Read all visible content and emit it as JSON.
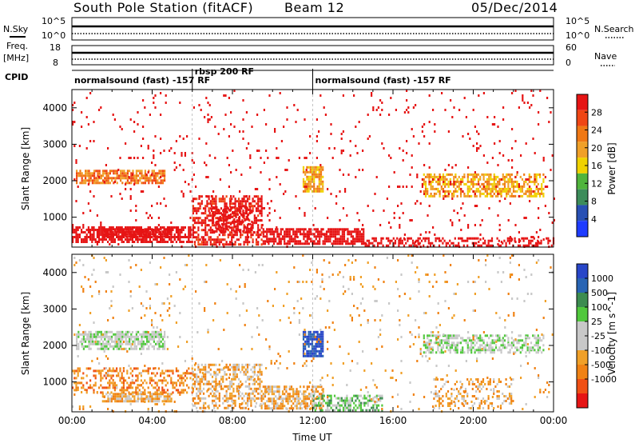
{
  "header": {
    "station": "South Pole Station (fitACF)",
    "beam": "Beam 12",
    "date": "05/Dec/2014"
  },
  "top_panels": {
    "nsky_label": "N.Sky",
    "nsky_ticks": [
      "10^5",
      "10^0"
    ],
    "nsearch_label": "N.Search",
    "nsearch_ticks": [
      "10^5",
      "10^0"
    ],
    "freq_label": "Freq.",
    "freq_unit": "[MHz]",
    "freq_ticks": [
      "18",
      "8"
    ],
    "nave_label": "Nave",
    "nave_ticks": [
      "60",
      "0"
    ],
    "cpid_label": "CPID",
    "cpid_segments": [
      {
        "label": "normalsound (fast) -157 RF",
        "start_hour": 0,
        "end_hour": 6
      },
      {
        "label": "rbsp 200 RF",
        "start_hour": 6,
        "end_hour": 12
      },
      {
        "label": "normalsound (fast) -157 RF",
        "start_hour": 12,
        "end_hour": 24
      }
    ]
  },
  "colors": {
    "power_scale": [
      "#1e3cff",
      "#2850b4",
      "#3c8c5a",
      "#50b43c",
      "#f0d200",
      "#f0a028",
      "#f07814",
      "#f04614",
      "#e61414"
    ],
    "velocity_scale": [
      "#2846c8",
      "#2864b4",
      "#3c8c50",
      "#50c83c",
      "#c8c8c8",
      "#c8c8c8",
      "#f0a028",
      "#f08214",
      "#f05014",
      "#e61414"
    ]
  },
  "chart_data": [
    {
      "type": "heatmap",
      "name": "power",
      "xlabel": "",
      "ylabel": "Slant Range [km]",
      "xlim": [
        0,
        24
      ],
      "ylim": [
        180,
        4500
      ],
      "y_ticks": [
        1000,
        2000,
        3000,
        4000
      ],
      "colorbar": {
        "label": "Power [dB]",
        "range": [
          0,
          32
        ],
        "ticks": [
          4,
          8,
          12,
          16,
          20,
          24,
          28
        ]
      },
      "regions": [
        {
          "t0": 0.2,
          "t1": 4.6,
          "r0": 1950,
          "r1": 2300,
          "level": 6,
          "density": 0.75
        },
        {
          "t0": 0.0,
          "t1": 6.0,
          "r0": 300,
          "r1": 750,
          "level": 20,
          "density": 0.7
        },
        {
          "t0": 1.5,
          "t1": 5.0,
          "r0": 500,
          "r1": 700,
          "level": 24,
          "density": 0.8
        },
        {
          "t0": 6.0,
          "t1": 9.5,
          "r0": 250,
          "r1": 1600,
          "level": 8,
          "density": 0.55
        },
        {
          "t0": 7.0,
          "t1": 9.0,
          "r0": 600,
          "r1": 1300,
          "level": 14,
          "density": 0.5
        },
        {
          "t0": 9.5,
          "t1": 14.5,
          "r0": 250,
          "r1": 700,
          "level": 22,
          "density": 0.75
        },
        {
          "t0": 11.5,
          "t1": 12.5,
          "r0": 1700,
          "r1": 2400,
          "level": 5,
          "density": 0.8
        },
        {
          "t0": 14.5,
          "t1": 24.0,
          "r0": 200,
          "r1": 450,
          "level": 20,
          "density": 0.45
        },
        {
          "t0": 17.5,
          "t1": 23.5,
          "r0": 1600,
          "r1": 2200,
          "level": 5,
          "density": 0.6
        },
        {
          "t0": 0.0,
          "t1": 24.0,
          "r0": 180,
          "r1": 4500,
          "level": 10,
          "density": 0.03
        }
      ]
    },
    {
      "type": "heatmap",
      "name": "velocity",
      "xlabel": "Time UT",
      "ylabel": "Slant Range [km]",
      "xlim": [
        0,
        24
      ],
      "x_ticks": [
        "00:00",
        "04:00",
        "08:00",
        "12:00",
        "16:00",
        "20:00",
        "00:00"
      ],
      "ylim": [
        180,
        4500
      ],
      "y_ticks": [
        1000,
        2000,
        3000,
        4000
      ],
      "colorbar": {
        "label": "Velocity [m s^-1]",
        "ticks": [
          "1000",
          "500",
          "100",
          "25",
          "-25",
          "-100",
          "-500",
          "-1000"
        ]
      },
      "regions": [
        {
          "t0": 0.2,
          "t1": 4.6,
          "r0": 1900,
          "r1": 2400,
          "level": 4,
          "density": 0.7
        },
        {
          "t0": 1.5,
          "t1": 5.0,
          "r0": 500,
          "r1": 700,
          "level": 6,
          "density": 0.8
        },
        {
          "t0": 0.0,
          "t1": 6.0,
          "r0": 700,
          "r1": 1400,
          "level": 7,
          "density": 0.35
        },
        {
          "t0": 6.0,
          "t1": 9.5,
          "r0": 300,
          "r1": 1500,
          "level": 6,
          "density": 0.45
        },
        {
          "t0": 9.5,
          "t1": 12.5,
          "r0": 300,
          "r1": 900,
          "level": 6,
          "density": 0.65
        },
        {
          "t0": 11.5,
          "t1": 12.5,
          "r0": 1700,
          "r1": 2400,
          "level": 0,
          "density": 0.85
        },
        {
          "t0": 12.0,
          "t1": 15.5,
          "r0": 250,
          "r1": 650,
          "level": 3,
          "density": 0.55
        },
        {
          "t0": 17.5,
          "t1": 23.5,
          "r0": 1800,
          "r1": 2300,
          "level": 4,
          "density": 0.55
        },
        {
          "t0": 18.0,
          "t1": 22.0,
          "r0": 300,
          "r1": 1100,
          "level": 6,
          "density": 0.3
        },
        {
          "t0": 0.0,
          "t1": 24.0,
          "r0": 180,
          "r1": 4500,
          "level": 6,
          "density": 0.03
        }
      ]
    }
  ]
}
